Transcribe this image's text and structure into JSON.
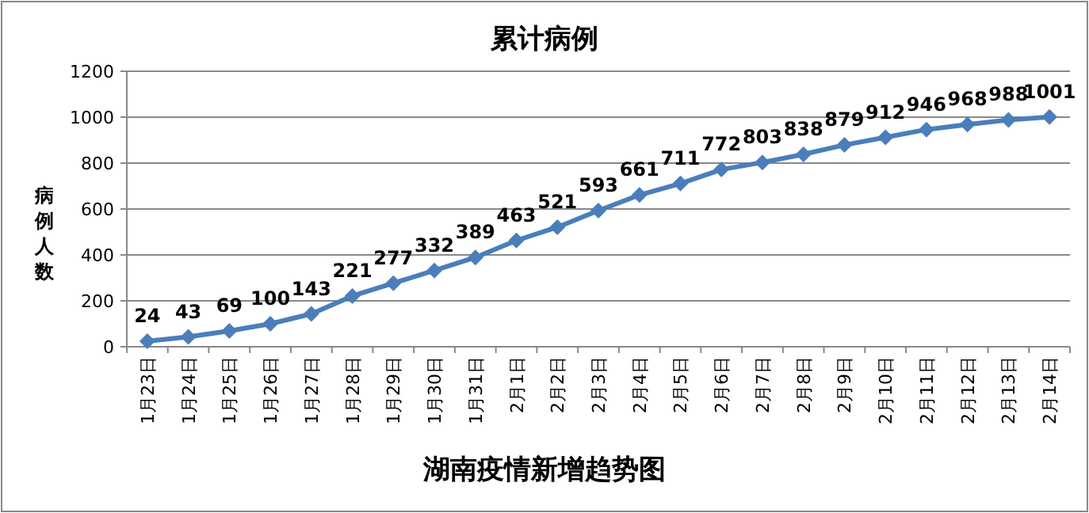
{
  "chart_data": {
    "type": "line",
    "title": "累计病例",
    "ylabel": "病例人数",
    "xlabel": "湖南疫情新增趋势图",
    "categories": [
      "1月23日",
      "1月24日",
      "1月25日",
      "1月26日",
      "1月27日",
      "1月28日",
      "1月29日",
      "1月30日",
      "1月31日",
      "2月1日",
      "2月2日",
      "2月3日",
      "2月4日",
      "2月5日",
      "2月6日",
      "2月7日",
      "2月8日",
      "2月9日",
      "2月10日",
      "2月11日",
      "2月12日",
      "2月13日",
      "2月14日"
    ],
    "series": [
      {
        "color": "#4a7ebb",
        "values": [
          24,
          43,
          69,
          100,
          143,
          221,
          277,
          332,
          389,
          463,
          521,
          593,
          661,
          711,
          772,
          803,
          838,
          879,
          912,
          946,
          968,
          988,
          1001
        ]
      }
    ],
    "ylim": [
      0,
      1200
    ],
    "yticks": [
      0,
      200,
      400,
      600,
      800,
      1000,
      1200
    ],
    "grid": "y",
    "marker": "diamond",
    "line_style": "solid",
    "data_labels": true
  }
}
